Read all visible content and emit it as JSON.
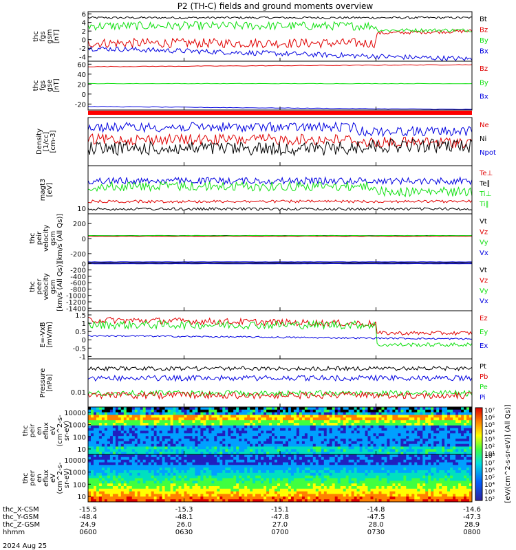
{
  "title": "P2 (TH-C) fields and ground moments overview",
  "date_label": "2024 Aug 25",
  "colors": {
    "black": "#000000",
    "red": "#e00000",
    "green": "#10e010",
    "blue": "#0000e0"
  },
  "chart_data": [
    {
      "id": "p1",
      "type": "line",
      "ylabel": [
        "thc",
        "fgs",
        "gsm",
        "[nT]"
      ],
      "yticks": [
        6,
        4,
        2,
        0,
        -2,
        -4
      ],
      "ylim": [
        -5,
        6.5
      ],
      "legend": [
        {
          "name": "Bt",
          "color": "black"
        },
        {
          "name": "Bz",
          "color": "red"
        },
        {
          "name": "By",
          "color": "green"
        },
        {
          "name": "Bx",
          "color": "blue"
        }
      ]
    },
    {
      "id": "p2",
      "type": "line",
      "ylabel": [
        "thc",
        "fgs",
        "gse",
        "[nT]"
      ],
      "yticks": [
        60,
        40,
        20,
        0,
        -20
      ],
      "ylim": [
        -32,
        66
      ],
      "legend": [
        {
          "name": "Bz",
          "color": "red"
        },
        {
          "name": "By",
          "color": "green"
        },
        {
          "name": "Bx",
          "color": "blue"
        }
      ]
    },
    {
      "id": "p3",
      "type": "line",
      "ylabel": [
        "Density",
        "[1/cc]",
        "[cm-3]"
      ],
      "yticks": [],
      "legend": [
        {
          "name": "Ne",
          "color": "red"
        },
        {
          "name": "Ni",
          "color": "black"
        },
        {
          "name": "Npot",
          "color": "blue"
        }
      ]
    },
    {
      "id": "p4",
      "type": "line",
      "ylabel": [
        "magt3",
        "[eV]"
      ],
      "yticks": [
        10
      ],
      "legend": [
        {
          "name": "Te⊥",
          "color": "red"
        },
        {
          "name": "Te∥",
          "color": "black"
        },
        {
          "name": "Ti⊥",
          "color": "green"
        },
        {
          "name": "Ti∥",
          "color": "green"
        }
      ]
    },
    {
      "id": "p5",
      "type": "line",
      "ylabel": [
        "thc",
        "peir",
        "velocity",
        "gsm",
        "[km/s (All Qs)]"
      ],
      "yticks": [
        200,
        0,
        -200
      ],
      "ylim": [
        -320,
        330
      ],
      "legend": [
        {
          "name": "Vt",
          "color": "black"
        },
        {
          "name": "Vz",
          "color": "red"
        },
        {
          "name": "Vy",
          "color": "green"
        },
        {
          "name": "Vx",
          "color": "blue"
        }
      ]
    },
    {
      "id": "p6",
      "type": "line",
      "ylabel": [
        "thc",
        "peer",
        "velocity",
        "gsm",
        "[km/s (All Qs)]"
      ],
      "yticks": [
        0,
        -200,
        -400,
        -600,
        -800,
        -1000,
        -1200,
        -1400
      ],
      "ylim": [
        -1480,
        30
      ],
      "legend": [
        {
          "name": "Vt",
          "color": "black"
        },
        {
          "name": "Vz",
          "color": "red"
        },
        {
          "name": "Vy",
          "color": "green"
        },
        {
          "name": "Vx",
          "color": "blue"
        }
      ]
    },
    {
      "id": "p7",
      "type": "line",
      "ylabel": [
        "E=-VxB",
        "[mV/m]"
      ],
      "yticks": [
        1.5,
        1.0,
        0.5,
        0.0,
        -0.5,
        -1.0
      ],
      "ylim": [
        -1.15,
        1.75
      ],
      "legend": [
        {
          "name": "Ez",
          "color": "red"
        },
        {
          "name": "Ey",
          "color": "green"
        },
        {
          "name": "Ex",
          "color": "blue"
        }
      ]
    },
    {
      "id": "p8",
      "type": "line",
      "ylabel": [
        "Pressure",
        "[nPa]"
      ],
      "yticks": [
        0.01
      ],
      "legend": [
        {
          "name": "Pt",
          "color": "black"
        },
        {
          "name": "Pb",
          "color": "red"
        },
        {
          "name": "Pe",
          "color": "green"
        },
        {
          "name": "Pi",
          "color": "blue"
        }
      ]
    },
    {
      "id": "p9",
      "type": "heatmap",
      "ylabel": [
        "thc",
        "peir",
        "en",
        "eflux",
        "eV",
        "(cm^2-s-",
        "sr-eV)"
      ],
      "yticks": [
        "10000",
        "1000",
        "100",
        "10"
      ],
      "legend": []
    },
    {
      "id": "p10",
      "type": "heatmap",
      "ylabel": [
        "thc",
        "peer",
        "en",
        "eflux",
        "eV",
        "(cm^2-s-",
        "sr-eV)"
      ],
      "yticks": [
        "10000",
        "1000",
        "100",
        "10"
      ],
      "legend": []
    }
  ],
  "colorbar": {
    "upper_ticks": [
      "10⁷",
      "10⁶",
      "10⁵",
      "10⁴",
      "10³",
      "10²",
      "10¹"
    ],
    "lower_ticks": [
      "10⁸",
      "10⁷",
      "10⁶",
      "10⁵",
      "10⁴",
      "10³",
      "10²"
    ],
    "label": "[eV/(cm^2-s-sr-eV)] (All Qs)]"
  },
  "x_axis": {
    "rows": [
      {
        "label": "thc_X-CSM",
        "values": [
          "-15.5",
          "-15.3",
          "-15.1",
          "-14.8",
          "-14.6"
        ]
      },
      {
        "label": "thc_Y-GSM",
        "values": [
          "-48.4",
          "-48.1",
          "-47.8",
          "-47.5",
          "-47.3"
        ]
      },
      {
        "label": "thc_Z-GSM",
        "values": [
          "24.9",
          "26.0",
          "27.0",
          "28.0",
          "28.9"
        ]
      },
      {
        "label": "hhmm",
        "values": [
          "0600",
          "0630",
          "0700",
          "0730",
          "0800"
        ]
      }
    ]
  }
}
